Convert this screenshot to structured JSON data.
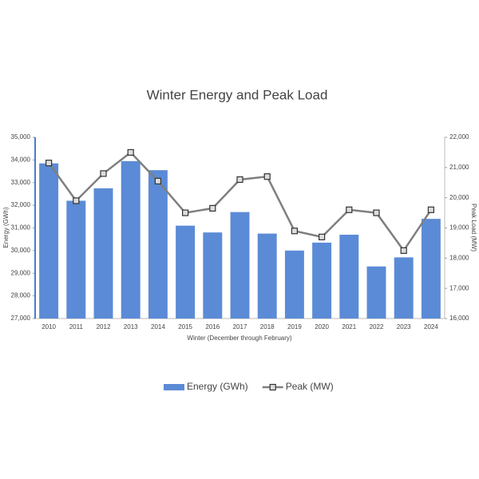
{
  "chart_data": {
    "type": "bar-line",
    "title": "Winter Energy and Peak Load",
    "x_label": "Winter (December through February)",
    "y_label": "Energy (GWh)",
    "y2_label": "Peak Load (MW)",
    "categories": [
      "2010",
      "2011",
      "2012",
      "2013",
      "2014",
      "2015",
      "2016",
      "2017",
      "2018",
      "2019",
      "2020",
      "2021",
      "2022",
      "2023",
      "2024"
    ],
    "series": [
      {
        "name": "Energy (GWh)",
        "type": "bar",
        "color": "#5b8bd6",
        "values": [
          33850,
          32200,
          32750,
          33950,
          33550,
          31100,
          30800,
          31700,
          30750,
          30000,
          30350,
          30700,
          29300,
          29700,
          31400
        ]
      },
      {
        "name": "Peak (MW)",
        "type": "line",
        "axis": "y2",
        "color": "#7f7f7f",
        "values": [
          21150,
          19900,
          20800,
          21500,
          20550,
          19500,
          19650,
          20600,
          20700,
          18900,
          18700,
          19600,
          19500,
          18250,
          19600
        ]
      }
    ],
    "ylim": [
      27000,
      35000
    ],
    "yticks": [
      {
        "value": 27000,
        "label": "27,000"
      },
      {
        "value": 28000,
        "label": "28,000"
      },
      {
        "value": 29000,
        "label": "29,000"
      },
      {
        "value": 30000,
        "label": "30,000"
      },
      {
        "value": 31000,
        "label": "31,000"
      },
      {
        "value": 32000,
        "label": "32,000"
      },
      {
        "value": 33000,
        "label": "33,000"
      },
      {
        "value": 34000,
        "label": "34,000"
      },
      {
        "value": 35000,
        "label": "35,000"
      }
    ],
    "y2lim": [
      16000,
      22000
    ],
    "y2ticks": [
      {
        "value": 16000,
        "label": "16,000"
      },
      {
        "value": 17000,
        "label": "17,000"
      },
      {
        "value": 18000,
        "label": "18,000"
      },
      {
        "value": 19000,
        "label": "19,000"
      },
      {
        "value": 20000,
        "label": "20,000"
      },
      {
        "value": 21000,
        "label": "21,000"
      },
      {
        "value": 22000,
        "label": "22,000"
      }
    ],
    "grid": false,
    "legend": "bottom"
  }
}
